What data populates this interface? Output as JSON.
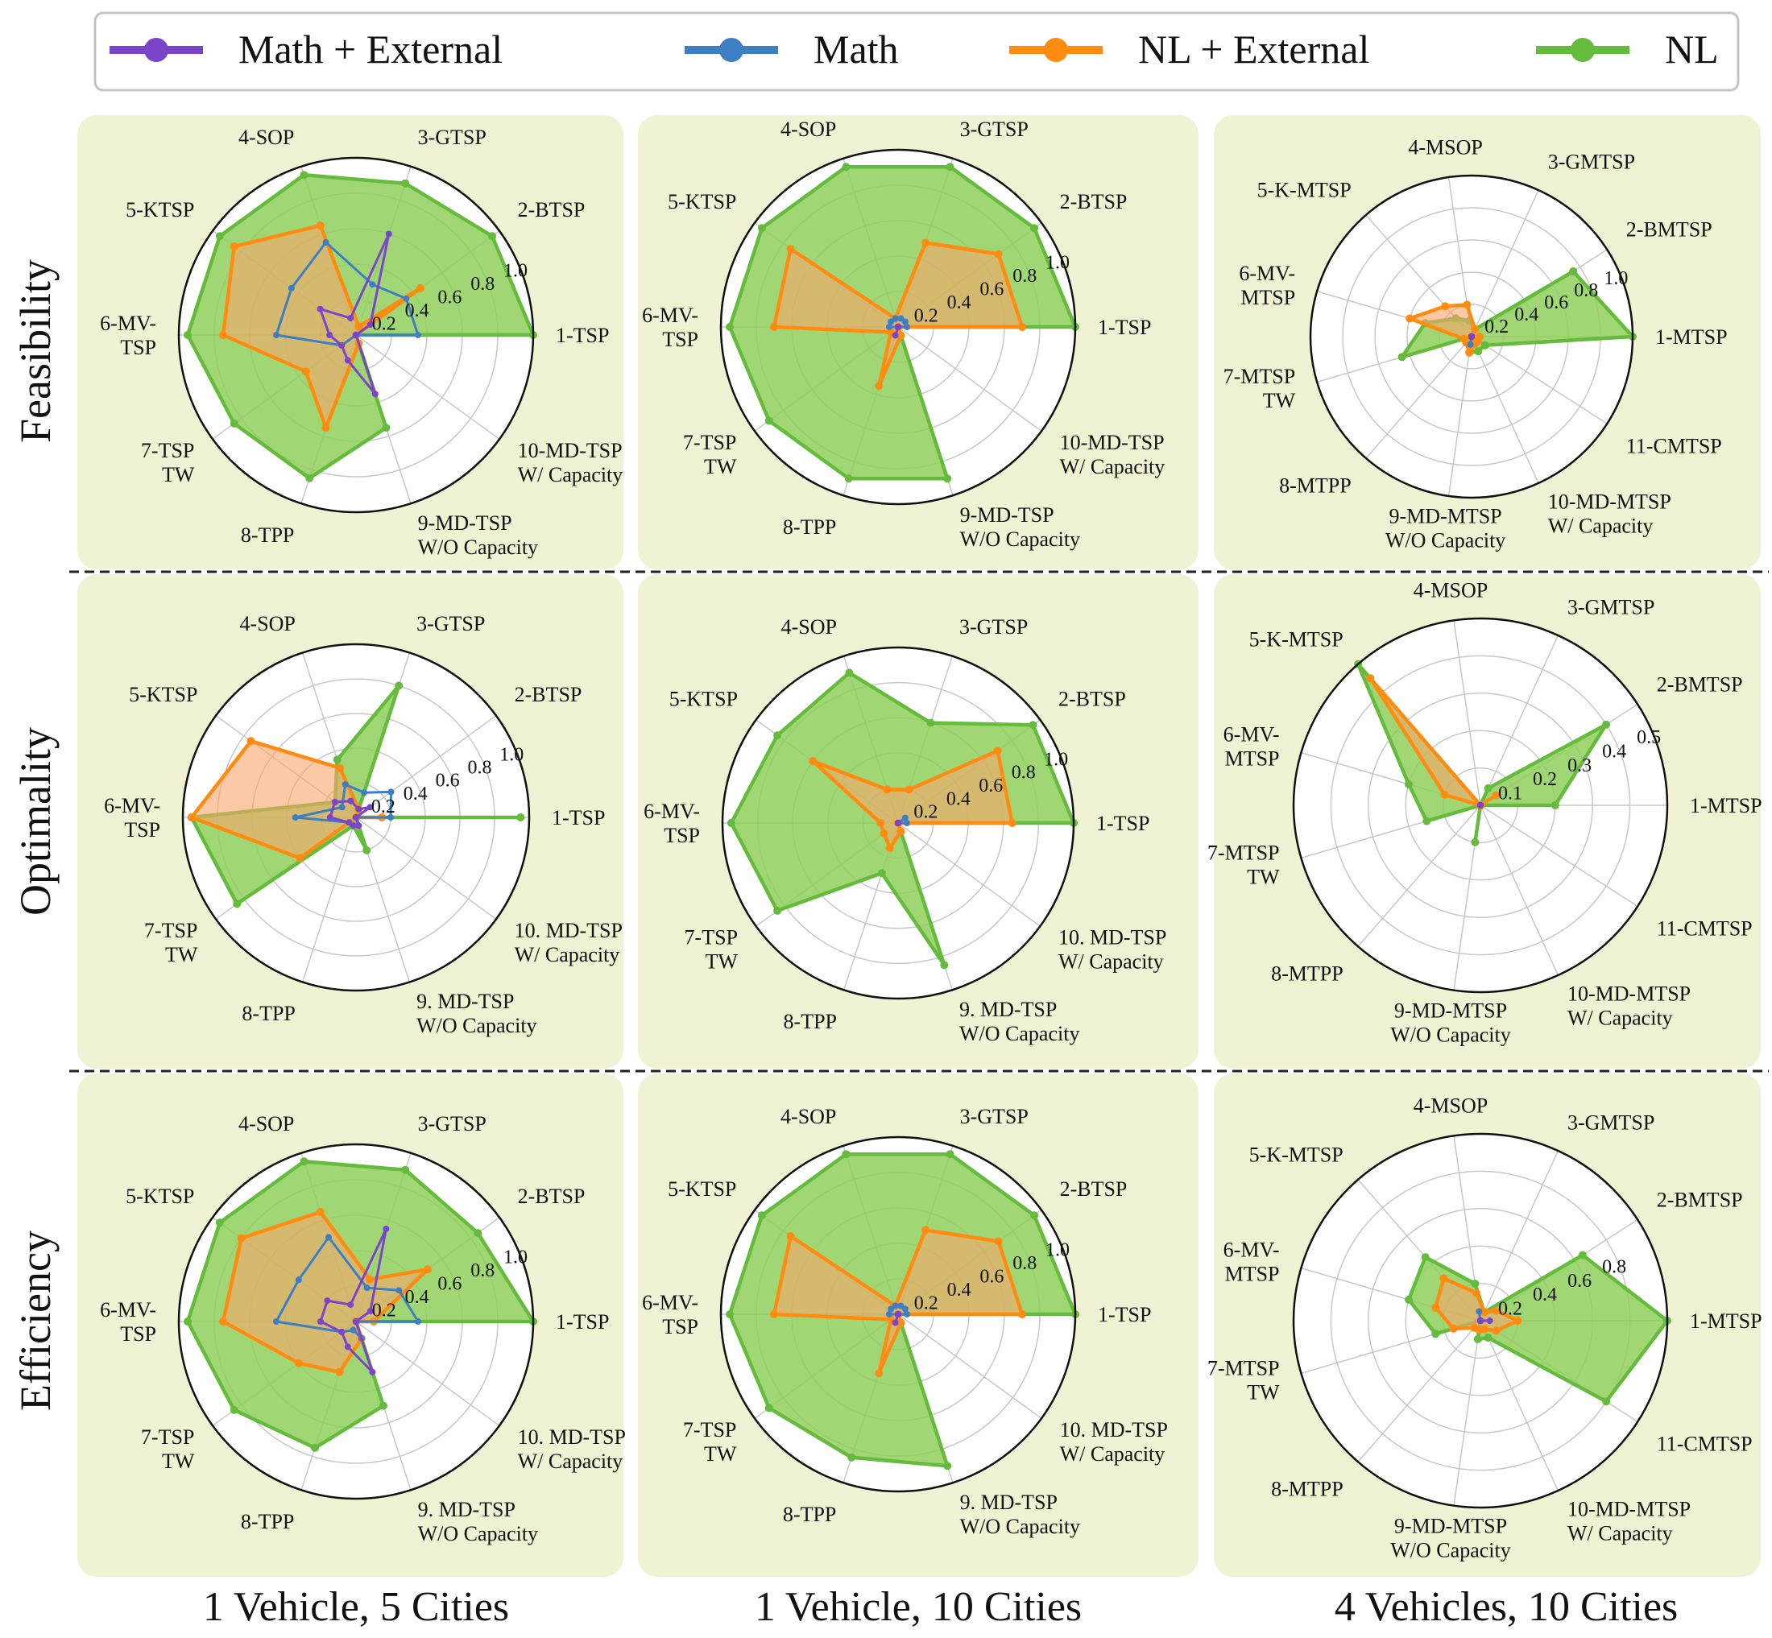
{
  "legend": [
    {
      "label": "Math + External",
      "color": "#7b44c9"
    },
    {
      "label": "Math",
      "color": "#3d7fc2"
    },
    {
      "label": "NL + External",
      "color": "#ff8c10"
    },
    {
      "label": "NL",
      "color": "#64bb3c"
    }
  ],
  "row_labels": [
    "Feasibility",
    "Optimality",
    "Efficiency"
  ],
  "col_labels": [
    "1 Vehicle, 5 Cities",
    "1 Vehicle, 10 Cities",
    "4 Vehicles, 10 Cities"
  ],
  "colors": {
    "panel_bg": "#eff3d3",
    "grid": "#c8c8c8",
    "nl_fill": "#8fcf5c",
    "nlext_fill": "#f9a56a"
  },
  "chart_data": [
    {
      "type": "radar",
      "row": "Feasibility",
      "col": "1 Vehicle, 5 Cities",
      "axes": [
        "1-TSP",
        "2-BTSP",
        "3-GTSP",
        "4-SOP",
        "5-KTSP",
        "6-MV-\nTSP",
        "7-TSP\nTW",
        "8-TPP",
        "9-MD-TSP\nW/O Capacity",
        "10-MD-TSP\nW/ Capacity"
      ],
      "r_ticks": [
        "0.2",
        "0.4",
        "0.6",
        "0.8",
        "1.0"
      ],
      "r_max": 1.0,
      "series": [
        {
          "name": "NL",
          "values": [
            1.0,
            0.95,
            0.9,
            0.95,
            0.95,
            0.95,
            0.85,
            0.85,
            0.55,
            0.0
          ]
        },
        {
          "name": "NL + External",
          "values": [
            0.0,
            0.45,
            0.05,
            0.65,
            0.85,
            0.75,
            0.35,
            0.55,
            0.05,
            0.0
          ]
        },
        {
          "name": "Math",
          "values": [
            0.35,
            0.35,
            0.3,
            0.55,
            0.45,
            0.45,
            0.1,
            0.0,
            0.0,
            0.0
          ]
        },
        {
          "name": "Math + External",
          "values": [
            0.0,
            0.1,
            0.6,
            0.1,
            0.25,
            0.15,
            0.1,
            0.15,
            0.35,
            0.0
          ]
        }
      ]
    },
    {
      "type": "radar",
      "row": "Feasibility",
      "col": "1 Vehicle, 10 Cities",
      "axes": [
        "1-TSP",
        "2-BTSP",
        "3-GTSP",
        "4-SOP",
        "5-KTSP",
        "6-MV-\nTSP",
        "7-TSP\nTW",
        "8-TPP",
        "9-MD-TSP\nW/O Capacity",
        "10-MD-TSP\nW/ Capacity"
      ],
      "r_ticks": [
        "0.2",
        "0.4",
        "0.6",
        "0.8",
        "1.0"
      ],
      "r_max": 1.0,
      "series": [
        {
          "name": "NL",
          "values": [
            1.0,
            0.95,
            0.95,
            0.95,
            0.95,
            0.95,
            0.9,
            0.9,
            0.9,
            0.0
          ]
        },
        {
          "name": "NL + External",
          "values": [
            0.7,
            0.7,
            0.5,
            0.05,
            0.75,
            0.7,
            0.05,
            0.35,
            0.05,
            0.0
          ]
        },
        {
          "name": "Math",
          "values": [
            0.05,
            0.05,
            0.05,
            0.05,
            0.05,
            0.05,
            0.0,
            0.0,
            0.0,
            0.0
          ]
        },
        {
          "name": "Math + External",
          "values": [
            0.0,
            0.0,
            0.0,
            0.0,
            0.0,
            0.0,
            0.0,
            0.05,
            0.0,
            0.0
          ]
        }
      ]
    },
    {
      "type": "radar",
      "row": "Feasibility",
      "col": "4 Vehicles, 10 Cities",
      "axes": [
        "1-MTSP",
        "2-BMTSP",
        "3-GMTSP",
        "4-MSOP",
        "5-K-MTSP",
        "6-MV-\nMTSP",
        "7-MTSP\nTW",
        "8-MTPP",
        "9-MD-MTSP\nW/O Capacity",
        "10-MD-MTSP\nW/ Capacity",
        "11-CMTSP"
      ],
      "r_ticks": [
        "0.2",
        "0.4",
        "0.6",
        "0.8",
        "1.0"
      ],
      "r_max": 1.0,
      "series": [
        {
          "name": "NL",
          "values": [
            1.0,
            0.75,
            0.05,
            0.1,
            0.15,
            0.3,
            0.45,
            0.0,
            0.1,
            0.1,
            0.1
          ]
        },
        {
          "name": "NL + External",
          "values": [
            0.05,
            0.0,
            0.05,
            0.2,
            0.25,
            0.4,
            0.05,
            0.05,
            0.1,
            0.05,
            0.05
          ]
        },
        {
          "name": "Math",
          "values": [
            0.0,
            0.0,
            0.0,
            0.0,
            0.0,
            0.0,
            0.0,
            0.0,
            0.05,
            0.0,
            0.0
          ]
        },
        {
          "name": "Math + External",
          "values": [
            0.0,
            0.0,
            0.0,
            0.0,
            0.0,
            0.0,
            0.0,
            0.0,
            0.0,
            0.0,
            0.0
          ]
        }
      ]
    },
    {
      "type": "radar",
      "row": "Optimality",
      "col": "1 Vehicle, 5 Cities",
      "axes": [
        "1-TSP",
        "2-BTSP",
        "3-GTSP",
        "4-SOP",
        "5-KTSP",
        "6-MV-\nTSP",
        "7-TSP\nTW",
        "8-TPP",
        "9. MD-TSP\nW/O Capacity",
        "10. MD-TSP\nW/ Capacity"
      ],
      "r_ticks": [
        "0.2",
        "0.4",
        "0.6",
        "0.8",
        "1.0"
      ],
      "r_max": 1.0,
      "series": [
        {
          "name": "NL",
          "values": [
            0.95,
            0.0,
            0.8,
            0.35,
            0.15,
            0.95,
            0.85,
            0.05,
            0.2,
            0.0
          ]
        },
        {
          "name": "NL + External",
          "values": [
            0.15,
            0.0,
            0.05,
            0.3,
            0.75,
            0.95,
            0.4,
            0.0,
            0.0,
            0.0
          ]
        },
        {
          "name": "Math",
          "values": [
            0.2,
            0.25,
            0.15,
            0.2,
            0.1,
            0.35,
            0.05,
            0.05,
            0.05,
            0.0
          ]
        },
        {
          "name": "Math + External",
          "values": [
            0.0,
            0.1,
            0.05,
            0.1,
            0.15,
            0.15,
            0.05,
            0.05,
            0.05,
            0.0
          ]
        }
      ]
    },
    {
      "type": "radar",
      "row": "Optimality",
      "col": "1 Vehicle, 10 Cities",
      "axes": [
        "1-TSP",
        "2-BTSP",
        "3-GTSP",
        "4-SOP",
        "5-KTSP",
        "6-MV-\nTSP",
        "7-TSP\nTW",
        "8-TPP",
        "9. MD-TSP\nW/O Capacity",
        "10. MD-TSP\nW/ Capacity"
      ],
      "r_ticks": [
        "0.2",
        "0.4",
        "0.6",
        "0.8",
        "1.0"
      ],
      "r_max": 1.0,
      "series": [
        {
          "name": "NL",
          "values": [
            1.0,
            0.95,
            0.6,
            0.9,
            0.85,
            0.95,
            0.85,
            0.3,
            0.85,
            0.0
          ]
        },
        {
          "name": "NL + External",
          "values": [
            0.65,
            0.7,
            0.2,
            0.2,
            0.6,
            0.1,
            0.1,
            0.15,
            0.05,
            0.0
          ]
        },
        {
          "name": "Math",
          "values": [
            0.05,
            0.05,
            0.0,
            0.0,
            0.0,
            0.0,
            0.0,
            0.0,
            0.0,
            0.0
          ]
        },
        {
          "name": "Math + External",
          "values": [
            0.0,
            0.0,
            0.0,
            0.0,
            0.0,
            0.0,
            0.0,
            0.0,
            0.0,
            0.0
          ]
        }
      ]
    },
    {
      "type": "radar",
      "row": "Optimality",
      "col": "4 Vehicles, 10 Cities",
      "axes": [
        "1-MTSP",
        "2-BMTSP",
        "3-GMTSP",
        "4-MSOP",
        "5-K-MTSP",
        "6-MV-\nMTSP",
        "7-MTSP\nTW",
        "8-MTPP",
        "9-MD-MTSP\nW/O Capacity",
        "10-MD-MTSP\nW/ Capacity",
        "11-CMTSP"
      ],
      "r_ticks": [
        "0.1",
        "0.2",
        "0.3",
        "0.4",
        "0.5"
      ],
      "r_max": 0.5,
      "series": [
        {
          "name": "NL",
          "values": [
            0.2,
            0.4,
            0.05,
            0.0,
            0.5,
            0.2,
            0.15,
            0.0,
            0.1,
            0.0,
            0.0
          ]
        },
        {
          "name": "NL + External",
          "values": [
            0.0,
            0.05,
            0.0,
            0.0,
            0.45,
            0.1,
            0.0,
            0.0,
            0.0,
            0.0,
            0.0
          ]
        },
        {
          "name": "Math",
          "values": [
            0.0,
            0.0,
            0.0,
            0.0,
            0.0,
            0.0,
            0.0,
            0.0,
            0.0,
            0.0,
            0.0
          ]
        },
        {
          "name": "Math + External",
          "values": [
            0.0,
            0.0,
            0.0,
            0.0,
            0.0,
            0.0,
            0.0,
            0.0,
            0.0,
            0.0,
            0.0
          ]
        }
      ]
    },
    {
      "type": "radar",
      "row": "Efficiency",
      "col": "1 Vehicle, 5 Cities",
      "axes": [
        "1-TSP",
        "2-BTSP",
        "3-GTSP",
        "4-SOP",
        "5-KTSP",
        "6-MV-\nTSP",
        "7-TSP\nTW",
        "8-TPP",
        "9. MD-TSP\nW/O Capacity",
        "10. MD-TSP\nW/ Capacity"
      ],
      "r_ticks": [
        "0.2",
        "0.4",
        "0.6",
        "0.8",
        "1.0"
      ],
      "r_max": 1.0,
      "series": [
        {
          "name": "NL",
          "values": [
            1.0,
            0.85,
            0.9,
            0.95,
            0.95,
            0.95,
            0.85,
            0.75,
            0.5,
            0.0
          ]
        },
        {
          "name": "NL + External",
          "values": [
            0.1,
            0.5,
            0.25,
            0.65,
            0.8,
            0.75,
            0.4,
            0.3,
            0.1,
            0.0
          ]
        },
        {
          "name": "Math",
          "values": [
            0.35,
            0.3,
            0.2,
            0.5,
            0.4,
            0.45,
            0.1,
            0.05,
            0.1,
            0.0
          ]
        },
        {
          "name": "Math + External",
          "values": [
            0.0,
            0.1,
            0.55,
            0.1,
            0.2,
            0.2,
            0.1,
            0.15,
            0.3,
            0.0
          ]
        }
      ]
    },
    {
      "type": "radar",
      "row": "Efficiency",
      "col": "1 Vehicle, 10 Cities",
      "axes": [
        "1-TSP",
        "2-BTSP",
        "3-GTSP",
        "4-SOP",
        "5-KTSP",
        "6-MV-\nTSP",
        "7-TSP\nTW",
        "8-TPP",
        "9. MD-TSP\nW/O Capacity",
        "10. MD-TSP\nW/ Capacity"
      ],
      "r_ticks": [
        "0.2",
        "0.4",
        "0.6",
        "0.8",
        "1.0"
      ],
      "r_max": 1.0,
      "series": [
        {
          "name": "NL",
          "values": [
            1.0,
            0.95,
            0.95,
            0.95,
            0.95,
            0.95,
            0.9,
            0.85,
            0.9,
            0.0
          ]
        },
        {
          "name": "NL + External",
          "values": [
            0.7,
            0.7,
            0.5,
            0.05,
            0.75,
            0.7,
            0.05,
            0.35,
            0.05,
            0.0
          ]
        },
        {
          "name": "Math",
          "values": [
            0.05,
            0.05,
            0.05,
            0.05,
            0.05,
            0.05,
            0.0,
            0.0,
            0.0,
            0.0
          ]
        },
        {
          "name": "Math + External",
          "values": [
            0.0,
            0.0,
            0.0,
            0.0,
            0.0,
            0.0,
            0.0,
            0.05,
            0.0,
            0.0
          ]
        }
      ]
    },
    {
      "type": "radar",
      "row": "Efficiency",
      "col": "4 Vehicles, 10 Cities",
      "axes": [
        "1-MTSP",
        "2-BMTSP",
        "3-GMTSP",
        "4-MSOP",
        "5-K-MTSP",
        "6-MV-\nMTSP",
        "7-MTSP\nTW",
        "8-MTPP",
        "9-MD-MTSP\nW/O Capacity",
        "10-MD-MTSP\nW/ Capacity",
        "11-CMTSP"
      ],
      "r_ticks": [
        "0.2",
        "0.4",
        "0.6",
        "0.8"
      ],
      "r_max": 1.0,
      "series": [
        {
          "name": "NL",
          "values": [
            1.0,
            0.65,
            0.05,
            0.2,
            0.45,
            0.4,
            0.25,
            0.0,
            0.1,
            0.1,
            0.8
          ]
        },
        {
          "name": "NL + External",
          "values": [
            0.2,
            0.1,
            0.05,
            0.15,
            0.3,
            0.25,
            0.15,
            0.05,
            0.05,
            0.05,
            0.1
          ]
        },
        {
          "name": "Math",
          "values": [
            0.0,
            0.0,
            0.0,
            0.05,
            0.0,
            0.0,
            0.0,
            0.0,
            0.0,
            0.0,
            0.0
          ]
        },
        {
          "name": "Math + External",
          "values": [
            0.05,
            0.0,
            0.0,
            0.0,
            0.0,
            0.0,
            0.0,
            0.0,
            0.0,
            0.0,
            0.0
          ]
        }
      ]
    }
  ]
}
